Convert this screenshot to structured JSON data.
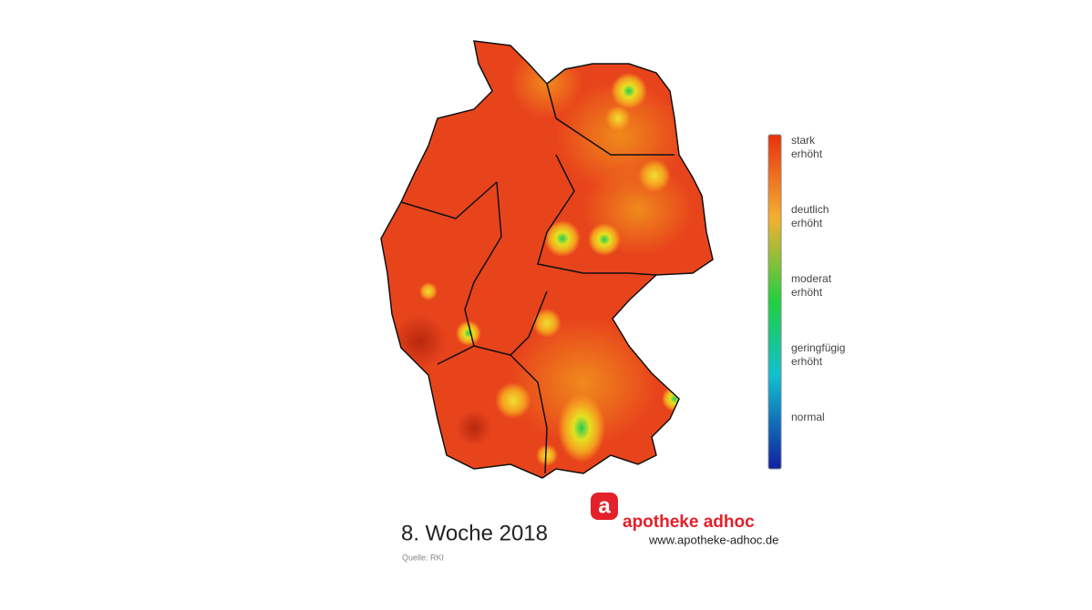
{
  "legend": {
    "labels": [
      [
        "stark",
        "erhöht"
      ],
      [
        "deutlich",
        "erhöht"
      ],
      [
        "moderat",
        "erhöht"
      ],
      [
        "geringfügig",
        "erhöht"
      ],
      [
        "normal"
      ]
    ]
  },
  "caption": {
    "title": "8. Woche 2018",
    "source": "Quelle: RKI"
  },
  "logo": {
    "mark": "a",
    "name": "apotheke adhoc",
    "url": "www.apotheke-adhoc.de"
  }
}
